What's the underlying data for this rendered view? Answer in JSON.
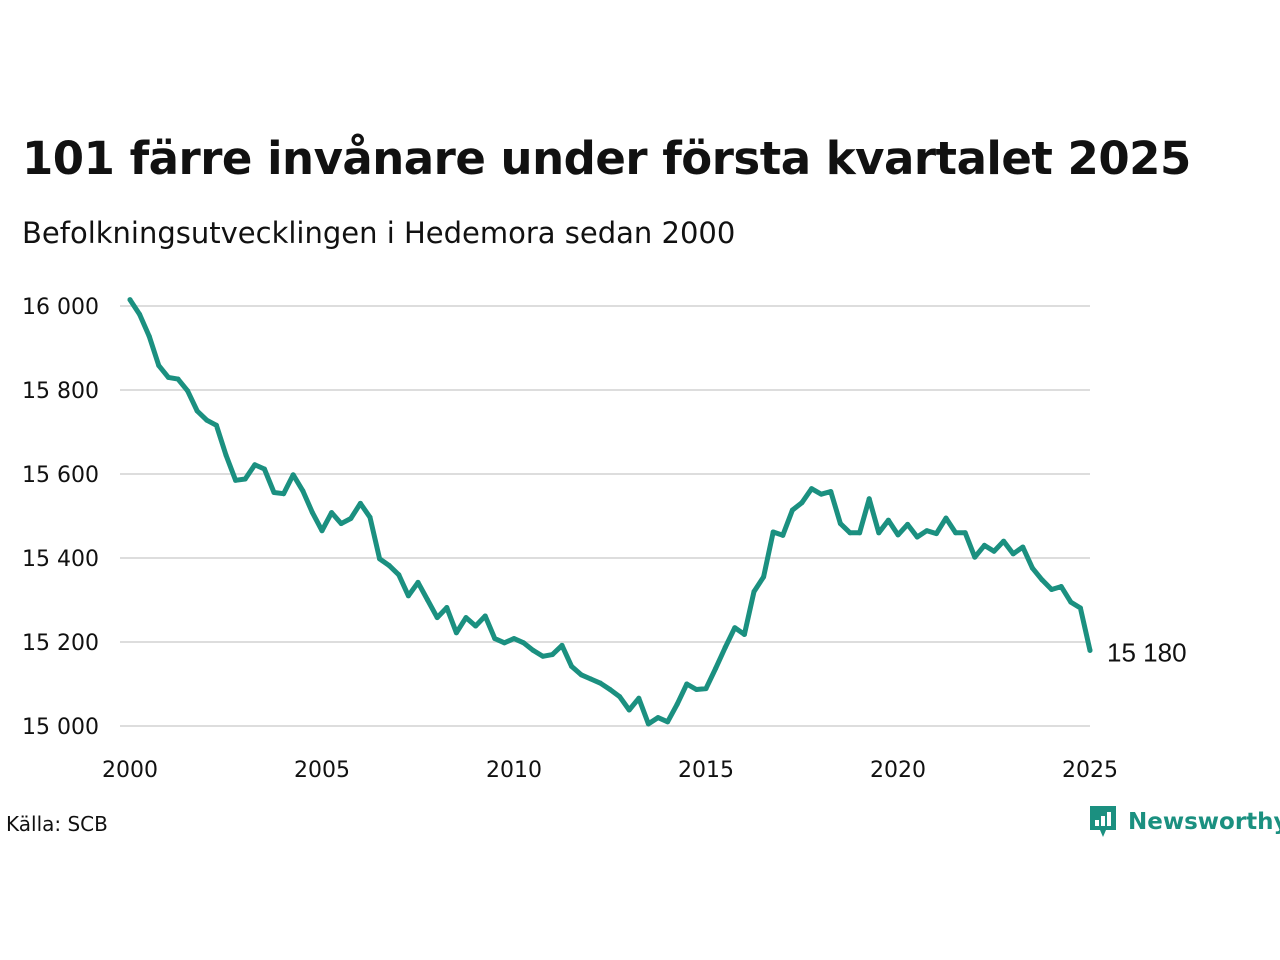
{
  "title": "101 färre invånare under första kvartalet 2025",
  "subtitle": "Befolkningsutvecklingen i Hedemora sedan 2000",
  "source": "Källa: SCB",
  "brand": {
    "name": "Newsworthy",
    "icon": "newsworthy-logo-icon"
  },
  "colors": {
    "line": "#1b9080",
    "grid": "#dddddd",
    "brand": "#1b9080",
    "text": "#111111"
  },
  "chart_data": {
    "type": "line",
    "x_range": [
      2000,
      2025
    ],
    "ylim": [
      15000,
      16000
    ],
    "yticks": [
      15000,
      15200,
      15400,
      15600,
      15800,
      16000
    ],
    "ytick_labels": [
      "15 000",
      "15 200",
      "15 400",
      "15 600",
      "15 800",
      "16 000"
    ],
    "xticks": [
      2000,
      2005,
      2010,
      2015,
      2020,
      2025
    ],
    "xtick_labels": [
      "2000",
      "2005",
      "2010",
      "2015",
      "2020",
      "2025"
    ],
    "grid": "horizontal",
    "end_label": "15 180",
    "series": [
      {
        "x": [
          2000.0,
          2000.25,
          2000.5,
          2000.75,
          2001.0,
          2001.25,
          2001.5,
          2001.75,
          2002.0,
          2002.25,
          2002.5,
          2002.75,
          2003.0,
          2003.25,
          2003.5,
          2003.75,
          2004.0,
          2004.25,
          2004.5,
          2004.75,
          2005.0,
          2005.25,
          2005.5,
          2005.75,
          2006.0,
          2006.25,
          2006.5,
          2006.75,
          2007.0,
          2007.25,
          2007.5,
          2007.75,
          2008.0,
          2008.25,
          2008.5,
          2008.75,
          2009.0,
          2009.25,
          2009.5,
          2009.75,
          2010.0,
          2010.25,
          2010.5,
          2010.75,
          2011.0,
          2011.25,
          2011.5,
          2011.75,
          2012.0,
          2012.25,
          2012.5,
          2012.75,
          2013.0,
          2013.25,
          2013.5,
          2013.75,
          2014.0,
          2014.25,
          2014.5,
          2014.75,
          2015.0,
          2015.25,
          2015.5,
          2015.75,
          2016.0,
          2016.25,
          2016.5,
          2016.75,
          2017.0,
          2017.25,
          2017.5,
          2017.75,
          2018.0,
          2018.25,
          2018.5,
          2018.75,
          2019.0,
          2019.25,
          2019.5,
          2019.75,
          2020.0,
          2020.25,
          2020.5,
          2020.75,
          2021.0,
          2021.25,
          2021.5,
          2021.75,
          2022.0,
          2022.25,
          2022.5,
          2022.75,
          2023.0,
          2023.25,
          2023.5,
          2023.75,
          2024.0,
          2024.25,
          2024.5,
          2024.75,
          2025.0
        ],
        "y": [
          16015,
          15980,
          15928,
          15858,
          15830,
          15826,
          15798,
          15750,
          15728,
          15716,
          15645,
          15585,
          15588,
          15622,
          15612,
          15556,
          15553,
          15598,
          15560,
          15508,
          15465,
          15508,
          15482,
          15494,
          15530,
          15497,
          15398,
          15382,
          15360,
          15310,
          15342,
          15300,
          15258,
          15282,
          15222,
          15258,
          15238,
          15262,
          15208,
          15198,
          15208,
          15198,
          15180,
          15166,
          15170,
          15192,
          15142,
          15122,
          15112,
          15102,
          15087,
          15070,
          15038,
          15066,
          15005,
          15020,
          15010,
          15052,
          15100,
          15087,
          15089,
          15137,
          15187,
          15234,
          15218,
          15320,
          15355,
          15462,
          15454,
          15514,
          15532,
          15565,
          15552,
          15558,
          15482,
          15460,
          15460,
          15541,
          15460,
          15490,
          15455,
          15480,
          15450,
          15465,
          15458,
          15495,
          15460,
          15460,
          15402,
          15430,
          15416,
          15440,
          15410,
          15426,
          15376,
          15348,
          15325,
          15332,
          15295,
          15281,
          15180
        ]
      }
    ]
  }
}
